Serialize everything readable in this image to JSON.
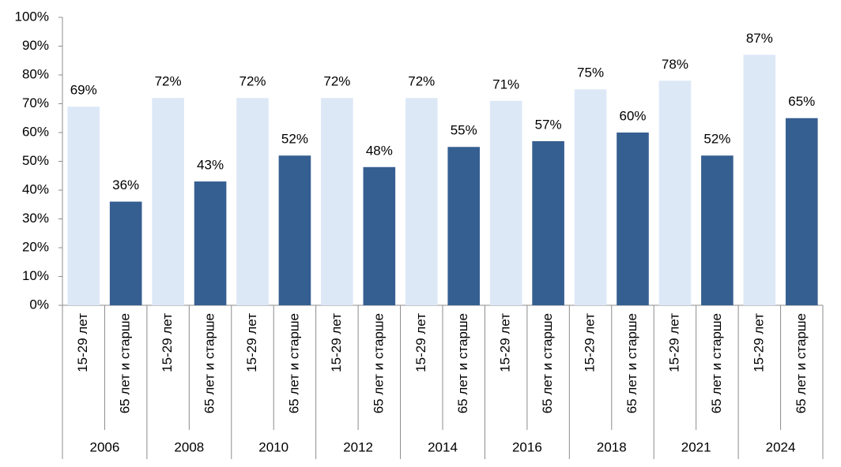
{
  "chart_data": {
    "type": "bar",
    "categories": [
      "2006",
      "2008",
      "2010",
      "2012",
      "2014",
      "2016",
      "2018",
      "2021",
      "2024"
    ],
    "series": [
      {
        "name": "15-29 лет",
        "color": "#dde8f7",
        "values": [
          69,
          72,
          72,
          72,
          72,
          71,
          75,
          78,
          87
        ],
        "value_labels": [
          "69%",
          "72%",
          "72%",
          "72%",
          "72%",
          "71%",
          "75%",
          "78%",
          "87%"
        ]
      },
      {
        "name": "65 лет и старше",
        "color": "#365f91",
        "values": [
          36,
          43,
          52,
          48,
          55,
          57,
          60,
          52,
          65
        ],
        "value_labels": [
          "36%",
          "43%",
          "52%",
          "48%",
          "55%",
          "57%",
          "60%",
          "52%",
          "65%"
        ]
      }
    ],
    "ylim": [
      0,
      100
    ],
    "yticks": [
      {
        "value": 0,
        "label": "0%"
      },
      {
        "value": 10,
        "label": "10%"
      },
      {
        "value": 20,
        "label": "20%"
      },
      {
        "value": 30,
        "label": "30%"
      },
      {
        "value": 40,
        "label": "40%"
      },
      {
        "value": 50,
        "label": "50%"
      },
      {
        "value": 60,
        "label": "60%"
      },
      {
        "value": 70,
        "label": "70%"
      },
      {
        "value": 80,
        "label": "80%"
      },
      {
        "value": 90,
        "label": "90%"
      },
      {
        "value": 100,
        "label": "100%"
      }
    ],
    "grid": false
  }
}
